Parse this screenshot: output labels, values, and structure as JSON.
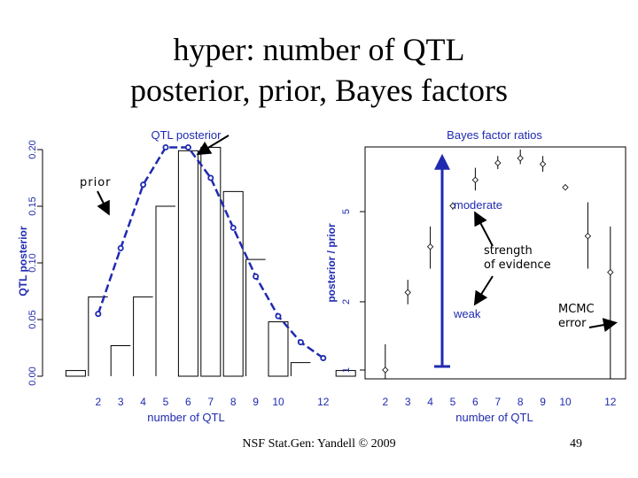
{
  "slide": {
    "title_line1": "hyper: number of QTL",
    "title_line2": "posterior, prior, Bayes factors",
    "footer": "NSF Stat.Gen: Yandell © 2009",
    "page_number": "49"
  },
  "colors": {
    "accent": "#1f2ab0",
    "axis": "#000000",
    "series": "#1f2ab0"
  },
  "chart_data": [
    {
      "type": "bar",
      "title": "QTL posterior",
      "xlabel": "number of QTL",
      "ylabel": "QTL posterior",
      "x_ticks": [
        "2",
        "3",
        "4",
        "5",
        "6",
        "7",
        "8",
        "9",
        "10",
        "12"
      ],
      "y_ticks": [
        "0.00",
        "0.05",
        "0.10",
        "0.15",
        "0.20"
      ],
      "ylim": [
        0,
        0.21
      ],
      "categories": [
        "1",
        "2",
        "3",
        "4",
        "5",
        "6",
        "7",
        "8",
        "9",
        "10",
        "11",
        "12",
        "13"
      ],
      "series": [
        {
          "values": [
            0.005,
            0.0,
            0.0,
            0.0,
            0.0,
            0.199,
            0.202,
            0.163,
            0.0,
            0.048,
            0.0,
            0.0,
            0.005
          ]
        },
        {
          "values": [
            null,
            0.07,
            0.027,
            0.07,
            0.15,
            null,
            null,
            null,
            0.103,
            null,
            0.012,
            null,
            null
          ]
        }
      ],
      "prior_line": {
        "x": [
          2,
          3,
          4,
          5,
          6,
          7,
          8,
          9,
          10,
          11,
          12
        ],
        "y": [
          0.055,
          0.113,
          0.169,
          0.202,
          0.202,
          0.175,
          0.131,
          0.088,
          0.053,
          0.03,
          0.016
        ]
      },
      "annotations": [
        "prior"
      ]
    },
    {
      "type": "scatter",
      "title": "Bayes factor ratios",
      "xlabel": "number of QTL",
      "ylabel": "posterior / prior",
      "x_ticks": [
        "2",
        "3",
        "4",
        "5",
        "6",
        "7",
        "8",
        "9",
        "10",
        "12"
      ],
      "y_ticks": [
        "1",
        "2",
        "5"
      ],
      "log_y": true,
      "ylim": [
        1,
        10
      ],
      "points": [
        {
          "x": 2,
          "y": 1.0,
          "err_lo": 0.8,
          "err_hi": 1.3
        },
        {
          "x": 3,
          "y": 2.2,
          "err_lo": 1.95,
          "err_hi": 2.5
        },
        {
          "x": 4,
          "y": 3.5,
          "err_lo": 2.8,
          "err_hi": 4.3
        },
        {
          "x": 5,
          "y": 5.3,
          "err_lo": 5.1,
          "err_hi": 5.5
        },
        {
          "x": 6,
          "y": 6.9,
          "err_lo": 6.2,
          "err_hi": 7.8
        },
        {
          "x": 7,
          "y": 8.2,
          "err_lo": 7.7,
          "err_hi": 8.8
        },
        {
          "x": 8,
          "y": 8.6,
          "err_lo": 8.1,
          "err_hi": 9.4
        },
        {
          "x": 9,
          "y": 8.1,
          "err_lo": 7.5,
          "err_hi": 8.8
        },
        {
          "x": 10,
          "y": 6.4,
          "err_lo": 6.3,
          "err_hi": 6.6
        },
        {
          "x": 11,
          "y": 3.9,
          "err_lo": 2.8,
          "err_hi": 5.5
        },
        {
          "x": 12,
          "y": 2.7,
          "err_lo": 0.72,
          "err_hi": 4.3
        }
      ],
      "evidence_range": [
        1,
        8.6
      ],
      "annotations": {
        "moderate": "moderate",
        "weak": "weak",
        "strength_line1": "strength",
        "strength_line2": "of evidence",
        "mcmc_line1": "MCMC",
        "mcmc_line2": "error"
      }
    }
  ]
}
